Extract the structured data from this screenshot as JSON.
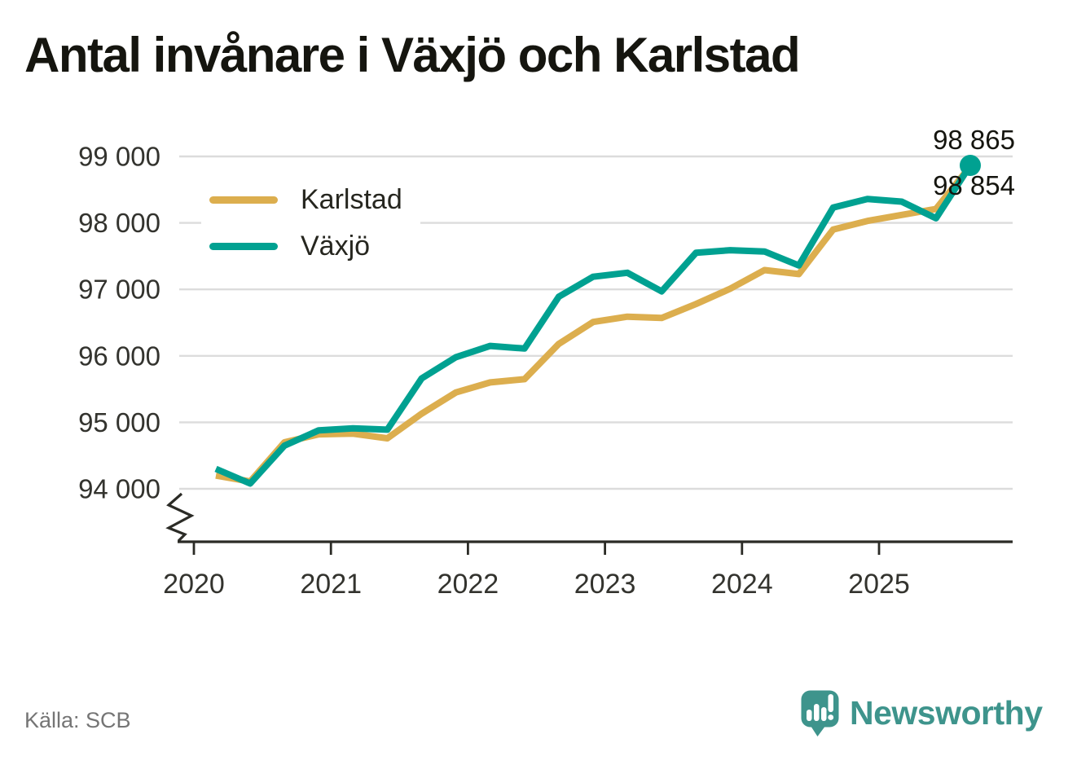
{
  "title": "Antal invånare i Växjö och Karlstad",
  "source": "Källa: SCB",
  "branding": {
    "name": "Newsworthy",
    "icon": "newsworthy-speech-bubble-bar-chart-icon",
    "color": "#3E948C"
  },
  "colors": {
    "karlstad": "#DCAE4E",
    "vaxjo": "#00A191",
    "grid": "#DCDCDC",
    "axis": "#2B2B26",
    "tick_text": "#33332E",
    "end_label_text": "#15150F",
    "title_text": "#15150F",
    "source_text": "#757575"
  },
  "legend": [
    {
      "label": "Karlstad",
      "color": "#DCAE4E"
    },
    {
      "label": "Växjö",
      "color": "#00A191"
    }
  ],
  "chart_data": {
    "type": "line",
    "title": "Antal invånare i Växjö och Karlstad",
    "x_unit": "quarter",
    "grid": "horizontal",
    "axis_break": true,
    "legend_position": "top-left-inside",
    "ylim": [
      94000,
      99000
    ],
    "y_ticks": [
      {
        "label": "99 000",
        "value": 99000
      },
      {
        "label": "98 000",
        "value": 98000
      },
      {
        "label": "97 000",
        "value": 97000
      },
      {
        "label": "96 000",
        "value": 96000
      },
      {
        "label": "95 000",
        "value": 95000
      },
      {
        "label": "94 000",
        "value": 94000
      }
    ],
    "x_label_ticks": [
      "2020",
      "2021",
      "2022",
      "2023",
      "2024",
      "2025"
    ],
    "x": [
      "2020 Q1",
      "2020 Q2",
      "2020 Q3",
      "2020 Q4",
      "2021 Q1",
      "2021 Q2",
      "2021 Q3",
      "2021 Q4",
      "2022 Q1",
      "2022 Q2",
      "2022 Q3",
      "2022 Q4",
      "2023 Q1",
      "2023 Q2",
      "2023 Q3",
      "2023 Q4",
      "2024 Q1",
      "2024 Q2",
      "2024 Q3",
      "2024 Q4",
      "2025 Q1",
      "2025 Q2",
      "2025 Q3"
    ],
    "series": [
      {
        "name": "Karlstad",
        "color": "#DCAE4E",
        "end_label": "98 854",
        "end_marker": false,
        "values": [
          94200,
          94110,
          94700,
          94820,
          94830,
          94760,
          95130,
          95450,
          95600,
          95650,
          96180,
          96510,
          96590,
          96570,
          96780,
          97010,
          97290,
          97230,
          97900,
          98030,
          98120,
          98210,
          98854
        ]
      },
      {
        "name": "Växjö",
        "color": "#00A191",
        "end_label": "98 865",
        "end_marker": true,
        "values": [
          94300,
          94080,
          94650,
          94880,
          94910,
          94890,
          95660,
          95980,
          96150,
          96110,
          96890,
          97190,
          97250,
          96970,
          97550,
          97590,
          97570,
          97360,
          98230,
          98360,
          98320,
          98070,
          98865
        ]
      }
    ]
  }
}
